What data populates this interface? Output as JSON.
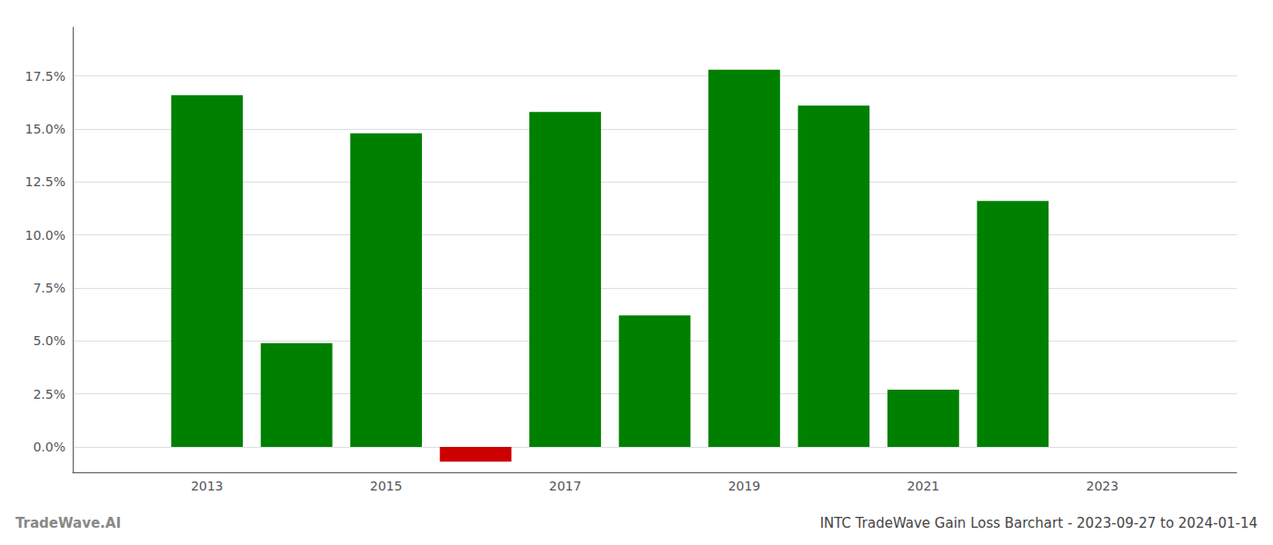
{
  "chart_data": {
    "type": "bar",
    "title": "INTC TradeWave Gain Loss Barchart - 2023-09-27 to 2024-01-14",
    "annotations": [
      "TradeWave.AI"
    ],
    "x": [
      2013,
      2014,
      2015,
      2016,
      2017,
      2018,
      2019,
      2020,
      2021,
      2022
    ],
    "values": [
      0.166,
      0.049,
      0.148,
      -0.007,
      0.158,
      0.062,
      0.178,
      0.161,
      0.027,
      0.116
    ],
    "colors": [
      "#008000",
      "#008000",
      "#008000",
      "#cc0000",
      "#008000",
      "#008000",
      "#008000",
      "#008000",
      "#008000",
      "#008000"
    ],
    "xlim": [
      2011.5,
      2024.5
    ],
    "xticks": [
      2013,
      2015,
      2017,
      2019,
      2021,
      2023
    ],
    "ylim": [
      -0.012,
      0.198
    ],
    "yticks": [
      {
        "value": 0.0,
        "label": "0.0%"
      },
      {
        "value": 0.025,
        "label": "2.5%"
      },
      {
        "value": 0.05,
        "label": "5.0%"
      },
      {
        "value": 0.075,
        "label": "7.5%"
      },
      {
        "value": 0.1,
        "label": "10.0%"
      },
      {
        "value": 0.125,
        "label": "12.5%"
      },
      {
        "value": 0.15,
        "label": "15.0%"
      },
      {
        "value": 0.175,
        "label": "17.5%"
      }
    ],
    "grid": true
  }
}
